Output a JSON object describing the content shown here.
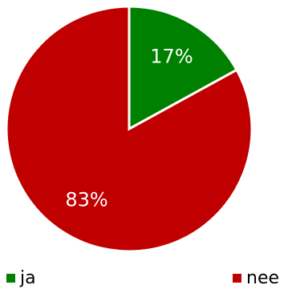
{
  "chart_data": {
    "type": "pie",
    "categories": [
      "ja",
      "nee"
    ],
    "values": [
      17,
      83
    ],
    "value_labels": [
      "17%",
      "83%"
    ],
    "colors": [
      "#008000",
      "#c00000"
    ],
    "legend": "bottom"
  }
}
